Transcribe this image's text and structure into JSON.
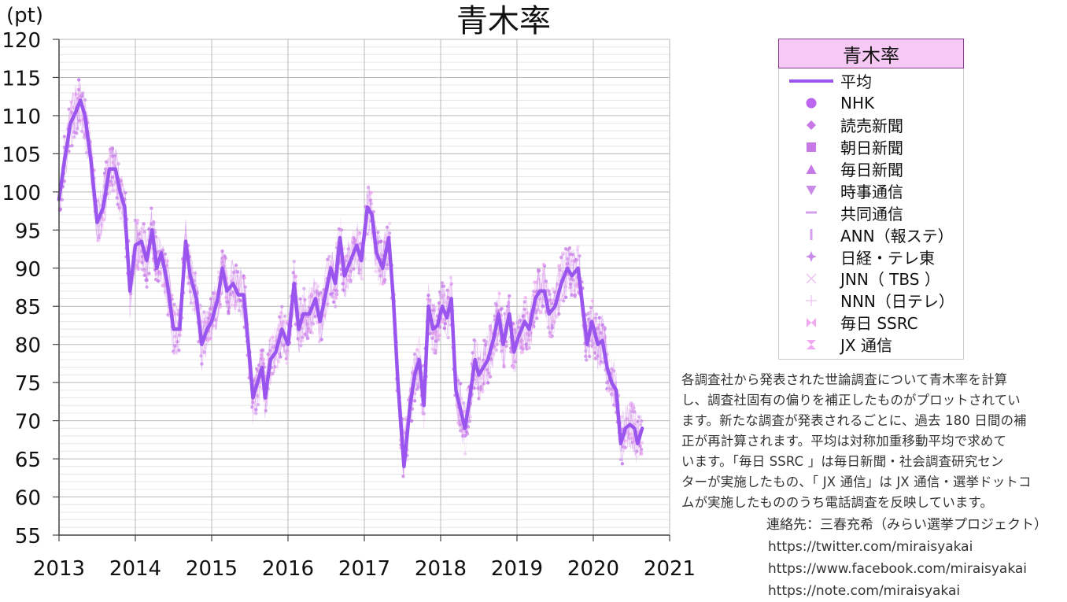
{
  "chart_data": {
    "type": "line",
    "title": "青木率",
    "ylabel": "(pt)",
    "xlabel": "",
    "ylim": [
      55,
      120
    ],
    "yticks": [
      55,
      60,
      65,
      70,
      75,
      80,
      85,
      90,
      95,
      100,
      105,
      110,
      115,
      120
    ],
    "xlim": [
      2013,
      2021
    ],
    "xticks": [
      2013,
      2014,
      2015,
      2016,
      2017,
      2018,
      2019,
      2020,
      2021
    ],
    "grid": true,
    "legend_placement": "right",
    "legend_title": "青木率",
    "series": [
      {
        "name": "平均",
        "color": "#9a55ee",
        "points": [
          [
            2013.0,
            99
          ],
          [
            2013.07,
            104
          ],
          [
            2013.15,
            109
          ],
          [
            2013.22,
            110.5
          ],
          [
            2013.28,
            112
          ],
          [
            2013.34,
            110
          ],
          [
            2013.42,
            104
          ],
          [
            2013.5,
            96
          ],
          [
            2013.58,
            98
          ],
          [
            2013.66,
            103
          ],
          [
            2013.74,
            103
          ],
          [
            2013.8,
            100
          ],
          [
            2013.86,
            98
          ],
          [
            2013.93,
            87
          ],
          [
            2014.0,
            93
          ],
          [
            2014.08,
            93.5
          ],
          [
            2014.15,
            91
          ],
          [
            2014.22,
            95
          ],
          [
            2014.28,
            90
          ],
          [
            2014.34,
            92
          ],
          [
            2014.42,
            88
          ],
          [
            2014.5,
            82
          ],
          [
            2014.58,
            82
          ],
          [
            2014.66,
            93.5
          ],
          [
            2014.72,
            89
          ],
          [
            2014.8,
            86
          ],
          [
            2014.87,
            80
          ],
          [
            2014.94,
            82
          ],
          [
            2015.0,
            83
          ],
          [
            2015.08,
            86
          ],
          [
            2015.14,
            90
          ],
          [
            2015.2,
            87
          ],
          [
            2015.28,
            88
          ],
          [
            2015.35,
            86.5
          ],
          [
            2015.42,
            86.5
          ],
          [
            2015.48,
            80
          ],
          [
            2015.54,
            73
          ],
          [
            2015.6,
            75
          ],
          [
            2015.66,
            77
          ],
          [
            2015.7,
            73
          ],
          [
            2015.77,
            78
          ],
          [
            2015.84,
            79
          ],
          [
            2015.92,
            82
          ],
          [
            2016.0,
            80
          ],
          [
            2016.08,
            88
          ],
          [
            2016.14,
            82
          ],
          [
            2016.2,
            84
          ],
          [
            2016.28,
            84
          ],
          [
            2016.36,
            86
          ],
          [
            2016.42,
            83
          ],
          [
            2016.48,
            86
          ],
          [
            2016.56,
            90
          ],
          [
            2016.62,
            88
          ],
          [
            2016.68,
            94
          ],
          [
            2016.74,
            89
          ],
          [
            2016.82,
            91
          ],
          [
            2016.9,
            93
          ],
          [
            2016.96,
            91
          ],
          [
            2017.04,
            98
          ],
          [
            2017.1,
            97
          ],
          [
            2017.16,
            92
          ],
          [
            2017.24,
            90
          ],
          [
            2017.32,
            94
          ],
          [
            2017.38,
            86
          ],
          [
            2017.44,
            75
          ],
          [
            2017.52,
            64
          ],
          [
            2017.6,
            72
          ],
          [
            2017.66,
            76
          ],
          [
            2017.72,
            78
          ],
          [
            2017.78,
            72
          ],
          [
            2017.84,
            85
          ],
          [
            2017.9,
            82
          ],
          [
            2017.96,
            82.5
          ],
          [
            2018.02,
            85
          ],
          [
            2018.08,
            83.5
          ],
          [
            2018.14,
            86
          ],
          [
            2018.2,
            74
          ],
          [
            2018.27,
            71
          ],
          [
            2018.32,
            69
          ],
          [
            2018.38,
            73
          ],
          [
            2018.45,
            78
          ],
          [
            2018.5,
            76
          ],
          [
            2018.56,
            77
          ],
          [
            2018.62,
            78
          ],
          [
            2018.7,
            81
          ],
          [
            2018.76,
            84
          ],
          [
            2018.82,
            80
          ],
          [
            2018.9,
            84
          ],
          [
            2018.96,
            79
          ],
          [
            2019.02,
            81
          ],
          [
            2019.1,
            83
          ],
          [
            2019.16,
            82
          ],
          [
            2019.24,
            86
          ],
          [
            2019.3,
            87
          ],
          [
            2019.36,
            87
          ],
          [
            2019.42,
            84
          ],
          [
            2019.5,
            85
          ],
          [
            2019.58,
            88
          ],
          [
            2019.66,
            90
          ],
          [
            2019.72,
            89
          ],
          [
            2019.8,
            90
          ],
          [
            2019.86,
            85
          ],
          [
            2019.92,
            80
          ],
          [
            2019.98,
            83
          ],
          [
            2020.06,
            80
          ],
          [
            2020.12,
            80.5
          ],
          [
            2020.18,
            77
          ],
          [
            2020.24,
            75
          ],
          [
            2020.3,
            74
          ],
          [
            2020.36,
            67
          ],
          [
            2020.42,
            69
          ],
          [
            2020.48,
            69.5
          ],
          [
            2020.54,
            69
          ],
          [
            2020.58,
            67
          ],
          [
            2020.64,
            69
          ]
        ]
      },
      {
        "name": "NHK",
        "color": "#bb66ee",
        "marker": "circle"
      },
      {
        "name": "読売新聞",
        "color": "#c77ae6",
        "marker": "diamond"
      },
      {
        "name": "朝日新聞",
        "color": "#c77ae6",
        "marker": "square"
      },
      {
        "name": "毎日新聞",
        "color": "#c77ae6",
        "marker": "triangle-up"
      },
      {
        "name": "時事通信",
        "color": "#c98ae8",
        "marker": "triangle-down"
      },
      {
        "name": "共同通信",
        "color": "#d4a0ec",
        "marker": "dash"
      },
      {
        "name": "ANN（報ステ）",
        "color": "#d4a0ec",
        "marker": "bar"
      },
      {
        "name": "日経・テレ東",
        "color": "#c98ae8",
        "marker": "star"
      },
      {
        "name": "JNN（ TBS ）",
        "color": "#f0c8f4",
        "marker": "x"
      },
      {
        "name": "NNN（日テレ）",
        "color": "#f0c8f4",
        "marker": "plus"
      },
      {
        "name": "毎日 SSRC",
        "color": "#f0a8f0",
        "marker": "bowtie-h"
      },
      {
        "name": "JX 通信",
        "color": "#f0a8f0",
        "marker": "bowtie-v"
      }
    ]
  },
  "note": [
    "各調査社から発表された世論調査について青木率を計算",
    "し、調査社固有の偏りを補正したものがプロットされてい",
    "ます。新たな調査が発表されるごとに、過去 180 日間の補",
    "正が再計算されます。平均は対称加重移動平均で求めて",
    "います。「毎日 SSRC 」は毎日新聞・社会調査研究セン",
    "ターが実施したもの、「 JX 通信」は JX 通信・選挙ドットコ",
    "ムが実施したもののうち電話調査を反映しています。"
  ],
  "contact": {
    "label": "連絡先：三春充希（みらい選挙プロジェクト）",
    "links": [
      "https://twitter.com/miraisyakai",
      "https://www.facebook.com/miraisyakai",
      "https://note.com/miraisyakai"
    ]
  }
}
